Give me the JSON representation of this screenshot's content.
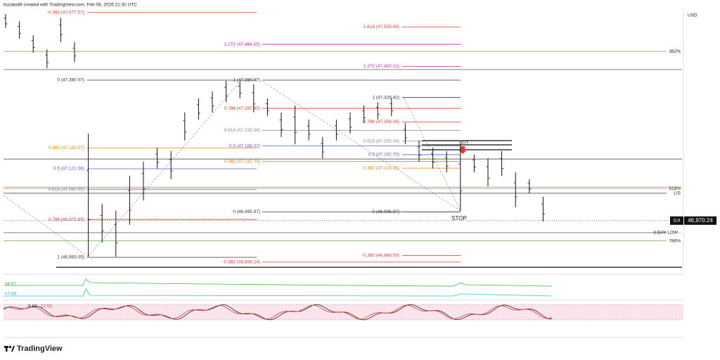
{
  "header": {
    "credit": "buzatu88 created with TradingView.com, Feb 08, 2026 21:30 UTC",
    "currency": "USD"
  },
  "bars": [
    {
      "high": 47573,
      "low": 47532
    },
    {
      "high": 47552,
      "low": 47501
    },
    {
      "high": 47511,
      "low": 47460
    },
    {
      "high": 47470,
      "low": 47415
    },
    {
      "high": 47562,
      "low": 47491
    },
    {
      "high": 47491,
      "low": 47433
    },
    {
      "high": 47224,
      "low": 46865
    },
    {
      "high": 47019,
      "low": 46906
    },
    {
      "high": 46999,
      "low": 46865
    },
    {
      "high": 47101,
      "low": 46958
    },
    {
      "high": 47142,
      "low": 47029
    },
    {
      "high": 47183,
      "low": 47122
    },
    {
      "high": 47173,
      "low": 47091
    },
    {
      "high": 47286,
      "low": 47204
    },
    {
      "high": 47327,
      "low": 47265
    },
    {
      "high": 47347,
      "low": 47286
    },
    {
      "high": 47378,
      "low": 47316
    },
    {
      "high": 47378,
      "low": 47327
    },
    {
      "high": 47368,
      "low": 47286
    },
    {
      "high": 47327,
      "low": 47275
    },
    {
      "high": 47286,
      "low": 47214
    },
    {
      "high": 47306,
      "low": 47193
    },
    {
      "high": 47265,
      "low": 47204
    },
    {
      "high": 47214,
      "low": 47152
    },
    {
      "high": 47265,
      "low": 47204
    },
    {
      "high": 47286,
      "low": 47224
    },
    {
      "high": 47306,
      "low": 47255
    },
    {
      "high": 47316,
      "low": 47265
    },
    {
      "high": 47327,
      "low": 47275
    },
    {
      "high": 47255,
      "low": 47193
    },
    {
      "high": 47204,
      "low": 47142
    },
    {
      "high": 47183,
      "low": 47122
    },
    {
      "high": 47173,
      "low": 47111
    },
    {
      "high": 47194,
      "low": 46999
    },
    {
      "high": 47163,
      "low": 47111
    },
    {
      "high": 47152,
      "low": 47070
    },
    {
      "high": 47173,
      "low": 47101
    },
    {
      "high": 47111,
      "low": 47009
    },
    {
      "high": 47091,
      "low": 47050
    },
    {
      "high": 47040,
      "low": 46968
    }
  ],
  "fibs": [
    {
      "levels": [
        {
          "label": "-0.382 (47,577.57)",
          "price": 47577.57,
          "color": "#e53935"
        },
        {
          "label": "0 (47,380.07)",
          "price": 47380.07,
          "color": "#333333"
        },
        {
          "label": "0.382 (47,182.57)",
          "price": 47182.57,
          "color": "#f57c00"
        },
        {
          "label": "0.5 (47,121.56)",
          "price": 47121.56,
          "color": "#5c5ccf"
        },
        {
          "label": "0.618 (47,060.55)",
          "price": 47060.55,
          "color": "#888888"
        },
        {
          "label": "0.786 (46,973.69)",
          "price": 46973.69,
          "color": "#e53935"
        },
        {
          "label": "1 (46,863.05)",
          "price": 46863.05,
          "color": "#333333"
        }
      ]
    },
    {
      "levels": [
        {
          "label": "1.272 (47,484.55)",
          "price": 47484.55,
          "color": "#d81b9b"
        },
        {
          "label": "1 (47,380.07)",
          "price": 47380.07,
          "color": "#333333"
        },
        {
          "label": "0.786 (47,297.85)",
          "price": 47297.85,
          "color": "#e53935"
        },
        {
          "label": "0.618 (47,233.34)",
          "price": 47233.34,
          "color": "#888888"
        },
        {
          "label": "0.5 (47,188.02)",
          "price": 47188.02,
          "color": "#5c5ccf"
        },
        {
          "label": "0.382 (47,142.70)",
          "price": 47142.7,
          "color": "#f57c00"
        },
        {
          "label": "0 (46,995.97)",
          "price": 46995.97,
          "color": "#333333"
        },
        {
          "label": "-0.382 (46,849.24)",
          "price": 46849.24,
          "color": "#e53935"
        }
      ]
    },
    {
      "levels": [
        {
          "label": "1.618 (47,535.49)",
          "price": 47535.49,
          "color": "#e53935"
        },
        {
          "label": "1.272 (47,420.12)",
          "price": 47420.12,
          "color": "#d81b9b"
        },
        {
          "label": "1 (47,329.42)",
          "price": 47329.42,
          "color": "#333333"
        },
        {
          "label": "0.786 (47,258.06)",
          "price": 47258.06,
          "color": "#e53935"
        },
        {
          "label": "0.618 (47,202.04)",
          "price": 47202.04,
          "color": "#888888"
        },
        {
          "label": "0.5 (47,162.70)",
          "price": 47162.7,
          "color": "#5c5ccf"
        },
        {
          "label": "0.382 (47,123.35)",
          "price": 47123.35,
          "color": "#f57c00"
        },
        {
          "label": "0 (46,995.97)",
          "price": 46995.97,
          "color": "#333333"
        },
        {
          "label": "-0.382 (46,868.59)",
          "price": 46868.59,
          "color": "#e53935"
        }
      ]
    }
  ],
  "lines": [
    {
      "label": "382%",
      "price": 47464,
      "color": "#6aa84f"
    },
    {
      "price": 47411,
      "color": "#333333"
    },
    {
      "price": 47150,
      "color": "#333333"
    },
    {
      "price": 47068,
      "color": "#f57c00"
    },
    {
      "label": "618%",
      "price": 47064,
      "color": "#888888"
    },
    {
      "label": "LIS",
      "price": 47050,
      "color": "#333333"
    },
    {
      "label": "3 DAY LOW -",
      "price": 46935,
      "color": "#333333"
    },
    {
      "label": "786%",
      "price": 46911,
      "color": "#6aa84f"
    },
    {
      "price": 46834,
      "color": "#111111"
    }
  ],
  "last_price": {
    "symbol": "DJI",
    "value": 46970.24,
    "label": "46,970.24"
  },
  "annotations": {
    "buy": "BUY",
    "stop": "STOP"
  },
  "indicators": {
    "volume_a": 46.67,
    "volume_b": 67.88,
    "stoch_k": 9.87,
    "stoch_d": 17.51
  },
  "footer": {
    "brand": "TradingView"
  }
}
